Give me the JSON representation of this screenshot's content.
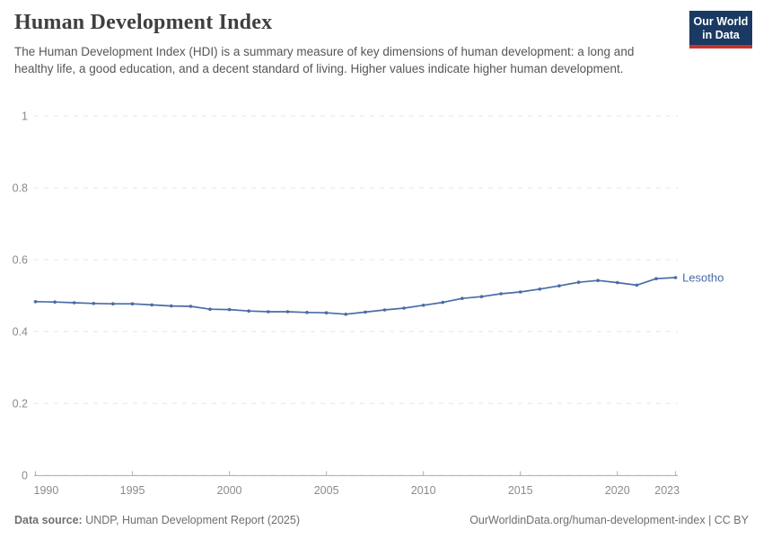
{
  "header": {
    "title": "Human Development Index",
    "subtitle": "The Human Development Index (HDI) is a summary measure of key dimensions of human development: a long and healthy life, a good education, and a decent standard of living. Higher values indicate higher human development.",
    "logo": {
      "line1": "Our World",
      "line2": "in Data"
    }
  },
  "chart_data": {
    "type": "line",
    "title": "Human Development Index",
    "xlabel": "",
    "ylabel": "",
    "xlim": [
      1990,
      2023
    ],
    "ylim": [
      0,
      1
    ],
    "grid": "horizontal-dashed",
    "legend": "series-end-label",
    "x": [
      1990,
      1991,
      1992,
      1993,
      1994,
      1995,
      1996,
      1997,
      1998,
      1999,
      2000,
      2001,
      2002,
      2003,
      2004,
      2005,
      2006,
      2007,
      2008,
      2009,
      2010,
      2011,
      2012,
      2013,
      2014,
      2015,
      2016,
      2017,
      2018,
      2019,
      2020,
      2021,
      2022,
      2023
    ],
    "series": [
      {
        "name": "Lesotho",
        "color": "#4a6ca6",
        "values": [
          0.483,
          0.482,
          0.48,
          0.478,
          0.477,
          0.477,
          0.474,
          0.471,
          0.47,
          0.462,
          0.461,
          0.457,
          0.455,
          0.455,
          0.453,
          0.452,
          0.448,
          0.454,
          0.46,
          0.465,
          0.473,
          0.481,
          0.492,
          0.497,
          0.505,
          0.51,
          0.518,
          0.527,
          0.537,
          0.542,
          0.536,
          0.529,
          0.547,
          0.55
        ]
      }
    ],
    "yticks": [
      {
        "v": 0,
        "label": "0"
      },
      {
        "v": 0.2,
        "label": "0.2"
      },
      {
        "v": 0.4,
        "label": "0.4"
      },
      {
        "v": 0.6,
        "label": "0.6"
      },
      {
        "v": 0.8,
        "label": "0.8"
      },
      {
        "v": 1,
        "label": "1"
      }
    ],
    "xticks": [
      {
        "v": 1990,
        "label": "1990"
      },
      {
        "v": 1995,
        "label": "1995"
      },
      {
        "v": 2000,
        "label": "2000"
      },
      {
        "v": 2005,
        "label": "2005"
      },
      {
        "v": 2010,
        "label": "2010"
      },
      {
        "v": 2015,
        "label": "2015"
      },
      {
        "v": 2020,
        "label": "2020"
      },
      {
        "v": 2023,
        "label": "2023"
      }
    ]
  },
  "colors": {
    "line": "#4a6ca6",
    "grid": "#e4e4e4",
    "axis": "#b0b0b0",
    "tick_text": "#8b8b8b",
    "logo_navy": "#1a3a63",
    "logo_red": "#c5332d"
  },
  "footer": {
    "source_label": "Data source:",
    "source_text": " UNDP, Human Development Report (2025)",
    "link_text": "OurWorldinData.org/human-development-index | CC BY"
  }
}
